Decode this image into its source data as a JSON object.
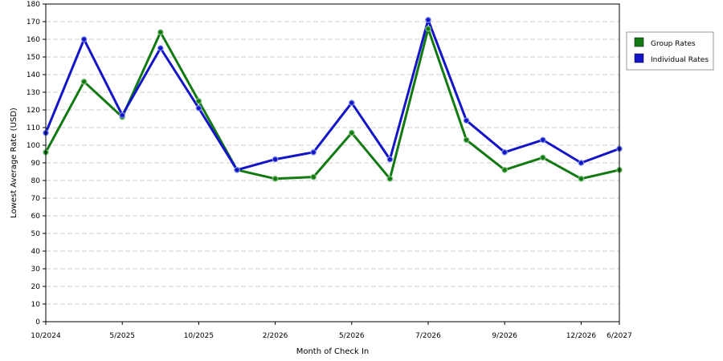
{
  "chart_data": {
    "type": "line",
    "xlabel": "Month of Check In",
    "ylabel": "Lowest Average Rate (USD)",
    "ylim": [
      0,
      180
    ],
    "ytick_step": 10,
    "grid": true,
    "legend_position": "right",
    "x_count": 16,
    "xtick_labels": [
      {
        "index": 0,
        "label": "10/2024"
      },
      {
        "index": 2,
        "label": "5/2025"
      },
      {
        "index": 4,
        "label": "10/2025"
      },
      {
        "index": 6,
        "label": "2/2026"
      },
      {
        "index": 8,
        "label": "5/2026"
      },
      {
        "index": 10,
        "label": "7/2026"
      },
      {
        "index": 12,
        "label": "9/2026"
      },
      {
        "index": 14,
        "label": "12/2026"
      },
      {
        "index": 15,
        "label": "6/2027"
      }
    ],
    "series": [
      {
        "name": "Group Rates",
        "color": "#137a13",
        "values": [
          96,
          136,
          116,
          164,
          125,
          86,
          81,
          82,
          107,
          81,
          166,
          103,
          86,
          93,
          81,
          86
        ]
      },
      {
        "name": "Individual Rates",
        "color": "#1515c8",
        "values": [
          107,
          160,
          117,
          155,
          121,
          86,
          92,
          96,
          124,
          92,
          171,
          114,
          96,
          103,
          90,
          98
        ]
      }
    ]
  }
}
